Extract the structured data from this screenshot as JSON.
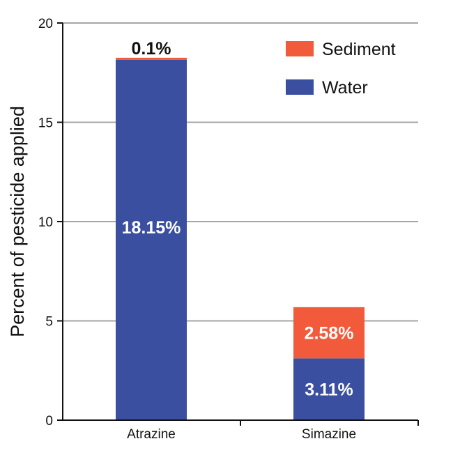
{
  "chart_data": {
    "type": "bar",
    "stacked": true,
    "categories": [
      "Atrazine",
      "Simazine"
    ],
    "series": [
      {
        "name": "Water",
        "values": [
          18.15,
          3.11
        ],
        "labels": [
          "18.15%",
          "3.11%"
        ],
        "color": "#3a4fa0"
      },
      {
        "name": "Sediment",
        "values": [
          0.1,
          2.58
        ],
        "labels": [
          "0.1%",
          "2.58%"
        ],
        "color": "#f15a3a"
      }
    ],
    "title": "",
    "xlabel": "",
    "ylabel": "Percent of pesticide applied",
    "ylim": [
      0,
      20
    ],
    "yticks": [
      "0",
      "5",
      "10",
      "15",
      "20"
    ],
    "grid": true,
    "legend": [
      "Sediment",
      "Water"
    ],
    "legend_position": "top-right"
  }
}
